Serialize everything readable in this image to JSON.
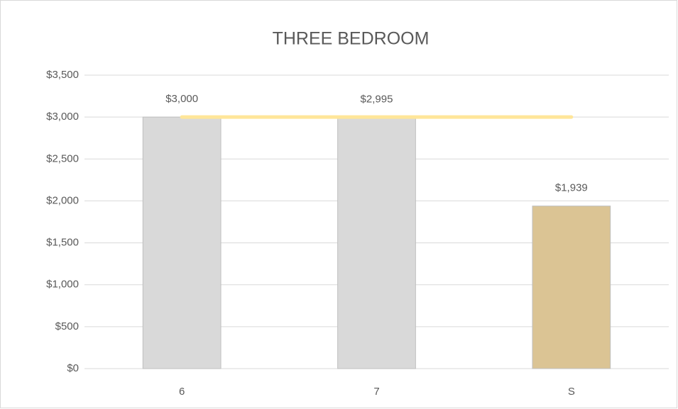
{
  "chart_data": {
    "type": "bar",
    "title": "THREE BEDROOM",
    "categories": [
      "6",
      "7",
      "S"
    ],
    "series": [
      {
        "type": "bar",
        "values": [
          3000,
          2995,
          1939
        ],
        "colors": [
          "#d9d9d9",
          "#d9d9d9",
          "#dbc494"
        ],
        "value_labels": [
          "$3,000",
          "$2,995",
          "$1,939"
        ]
      },
      {
        "type": "line",
        "color": "#ffe699",
        "values": [
          3000,
          3000,
          3000
        ]
      }
    ],
    "ylim": [
      0,
      3500
    ],
    "yticks": [
      {
        "value": 0,
        "label": "$0"
      },
      {
        "value": 500,
        "label": "$500"
      },
      {
        "value": 1000,
        "label": "$1,000"
      },
      {
        "value": 1500,
        "label": "$1,500"
      },
      {
        "value": 2000,
        "label": "$2,000"
      },
      {
        "value": 2500,
        "label": "$2,500"
      },
      {
        "value": 3000,
        "label": "$3,000"
      },
      {
        "value": 3500,
        "label": "$3,500"
      }
    ],
    "grid": true
  }
}
